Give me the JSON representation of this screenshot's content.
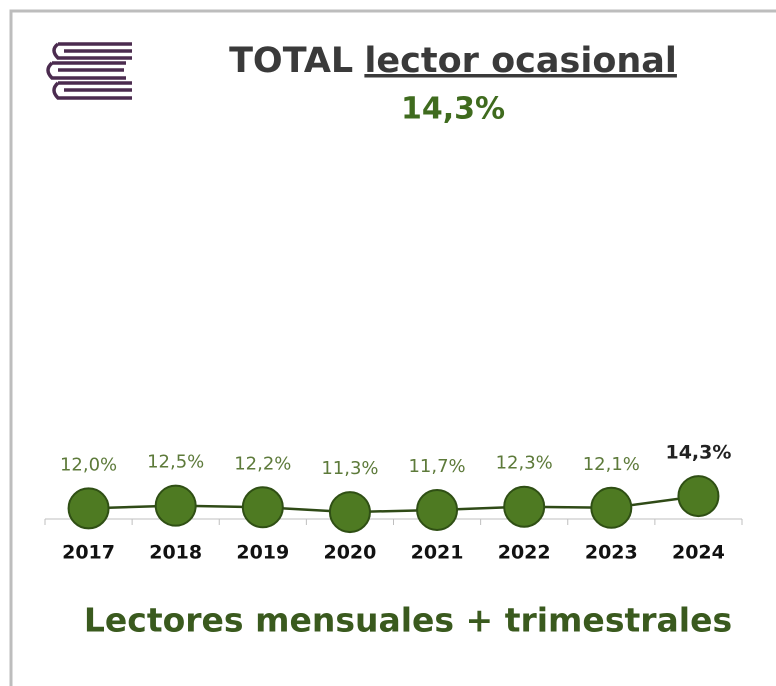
{
  "chart_data": {
    "type": "line",
    "title": "TOTAL",
    "title_underlined": "lector ocasional",
    "subtitle": "14,3%",
    "x_label": "Lectores mensuales + trimestrales",
    "categories": [
      "2017",
      "2018",
      "2019",
      "2020",
      "2021",
      "2022",
      "2023",
      "2024"
    ],
    "series": [
      {
        "color": "#4e7a22",
        "values": [
          12.0,
          12.5,
          12.2,
          11.3,
          11.7,
          12.3,
          12.1,
          14.3
        ],
        "value_labels": [
          "12,0%",
          "12,5%",
          "12,2%",
          "11,3%",
          "11,7%",
          "12,3%",
          "12,1%",
          "14,3%"
        ]
      }
    ],
    "ylim": [
      10,
      80
    ]
  }
}
